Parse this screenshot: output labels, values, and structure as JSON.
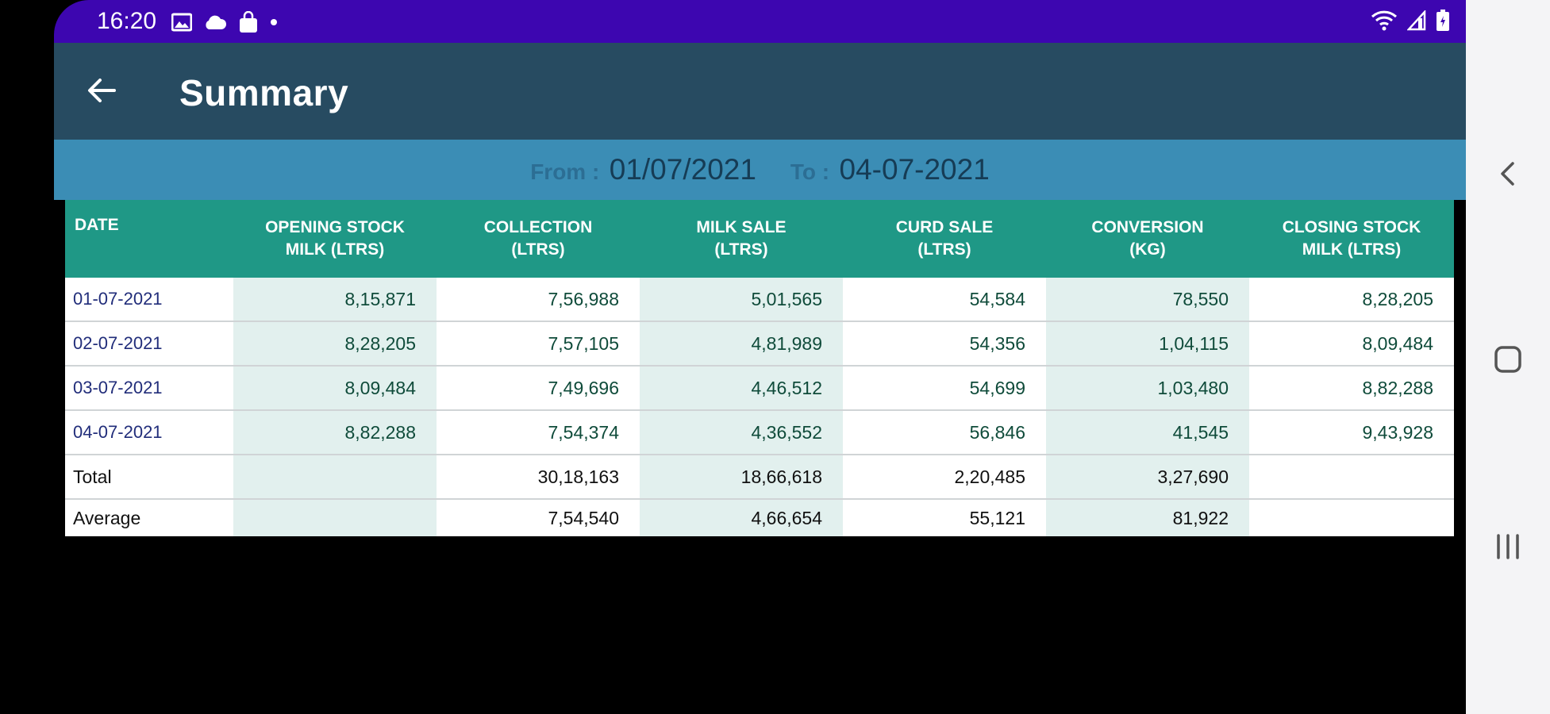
{
  "status_bar": {
    "time": "16:20",
    "left_icons": [
      "image-icon",
      "cloud-icon",
      "shopping-bag-icon",
      "dot-icon"
    ],
    "right_icons": [
      "wifi-icon",
      "signal-icon",
      "battery-icon"
    ],
    "color": "#3d06b0"
  },
  "app_bar": {
    "title": "Summary",
    "back_icon": "back-arrow-icon",
    "color": "#274b61"
  },
  "date_range": {
    "from_label": "From :",
    "from_value": "01/07/2021",
    "to_label": "To :",
    "to_value": "04-07-2021",
    "color": "#3b8db5"
  },
  "table": {
    "header_color": "#1f9886",
    "headers": [
      {
        "line1": "DATE",
        "line2": ""
      },
      {
        "line1": "OPENING STOCK",
        "line2": "MILK (LTRS)"
      },
      {
        "line1": "COLLECTION",
        "line2": "(LTRS)"
      },
      {
        "line1": "MILK SALE",
        "line2": "(LTRS)"
      },
      {
        "line1": "CURD SALE",
        "line2": "(LTRS)"
      },
      {
        "line1": "CONVERSION",
        "line2": "(KG)"
      },
      {
        "line1": "CLOSING STOCK",
        "line2": "MILK (LTRS)"
      }
    ],
    "rows": [
      [
        "01-07-2021",
        "8,15,871",
        "7,56,988",
        "5,01,565",
        "54,584",
        "78,550",
        "8,28,205"
      ],
      [
        "02-07-2021",
        "8,28,205",
        "7,57,105",
        "4,81,989",
        "54,356",
        "1,04,115",
        "8,09,484"
      ],
      [
        "03-07-2021",
        "8,09,484",
        "7,49,696",
        "4,46,512",
        "54,699",
        "1,03,480",
        "8,82,288"
      ],
      [
        "04-07-2021",
        "8,82,288",
        "7,54,374",
        "4,36,552",
        "56,846",
        "41,545",
        "9,43,928"
      ]
    ],
    "total": [
      "Total",
      "",
      "30,18,163",
      "18,66,618",
      "2,20,485",
      "3,27,690",
      ""
    ],
    "average": [
      "Average",
      "",
      "7,54,540",
      "4,66,654",
      "55,121",
      "81,922",
      ""
    ]
  },
  "nav_bar": {
    "buttons": [
      "back-nav-icon",
      "home-nav-icon",
      "recents-nav-icon"
    ]
  }
}
